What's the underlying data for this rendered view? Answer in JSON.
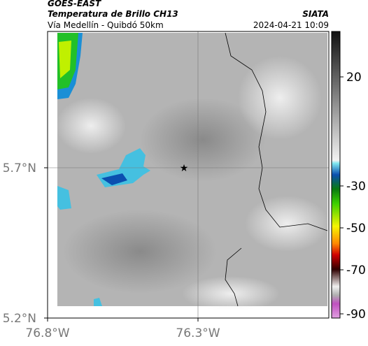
{
  "header": {
    "title": "GOES-EAST",
    "subtitle": "Temperatura de Brillo CH13",
    "location": "Vía Medellín - Quibdó 50km",
    "source": "SIATA",
    "datetime": "2024-04-21 10:09"
  },
  "map": {
    "lat_ticks": [
      "5.7°N",
      "5.2°N"
    ],
    "lon_ticks": [
      "76.8°W",
      "76.3°W"
    ]
  },
  "colorbar": {
    "ticks": [
      20,
      -30,
      -50,
      -70,
      -90
    ]
  }
}
